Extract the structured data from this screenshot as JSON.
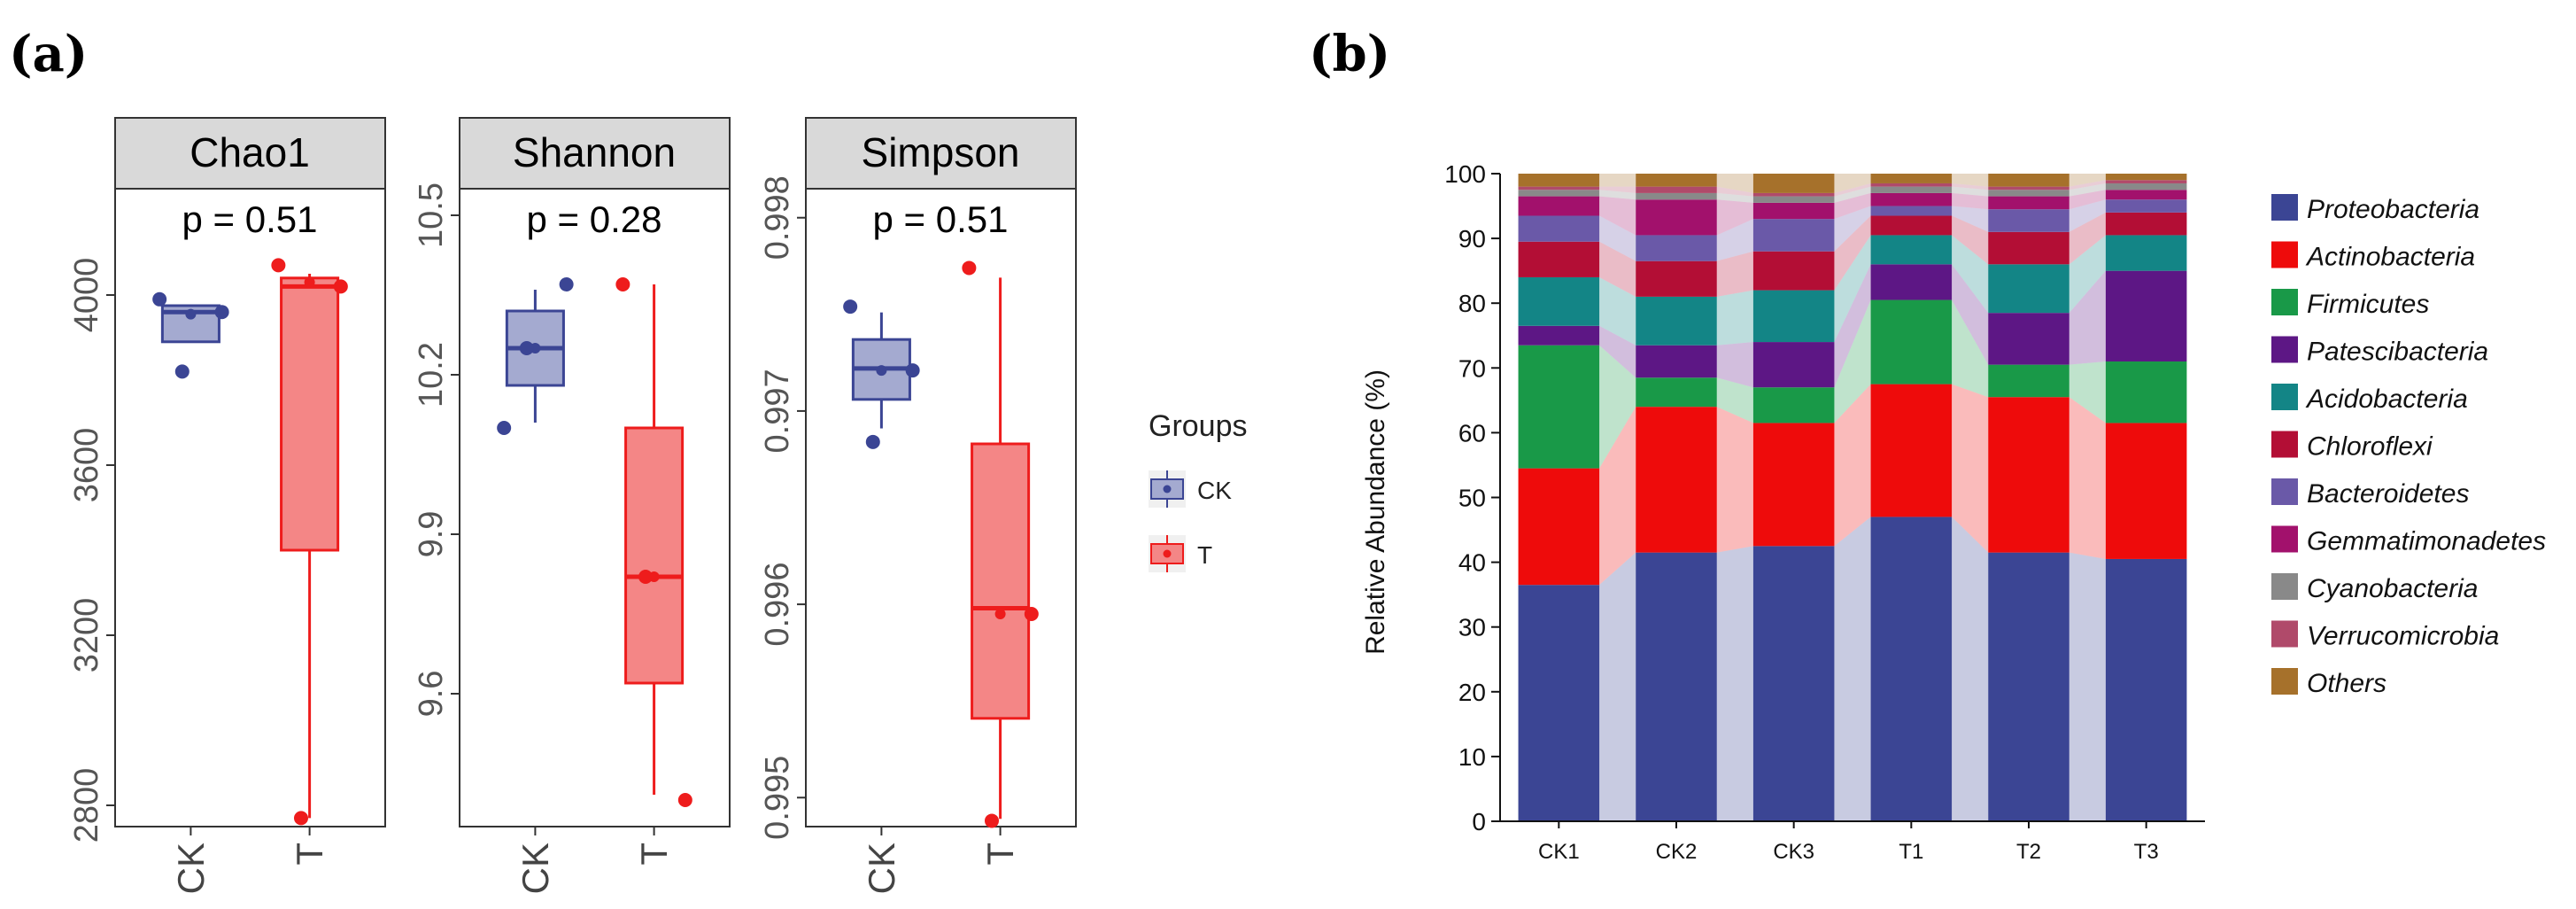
{
  "panel_labels": {
    "a": "(a)",
    "b": "(b)"
  },
  "chart_data": [
    {
      "type": "boxplot",
      "title": "Chao1",
      "p_label": "p = 0.51",
      "ylim": [
        2750,
        4250
      ],
      "yticks": [
        2800,
        3200,
        3600,
        4000
      ],
      "categories": [
        "CK",
        "T"
      ],
      "boxes": [
        {
          "group": "CK",
          "q1": 3890,
          "median": 3960,
          "q3": 3975,
          "whisker_low": 3890,
          "whisker_high": 3975,
          "mean": 3955,
          "points": [
            3990,
            3960,
            3820
          ]
        },
        {
          "group": "T",
          "q1": 3400,
          "median": 4020,
          "q3": 4040,
          "whisker_low": 2770,
          "whisker_high": 4050,
          "mean": 4030,
          "points": [
            4070,
            4020,
            2770
          ]
        }
      ]
    },
    {
      "type": "boxplot",
      "title": "Shannon",
      "p_label": "p = 0.28",
      "ylim": [
        9.35,
        10.55
      ],
      "yticks": [
        9.6,
        9.9,
        10.2,
        10.5
      ],
      "yticklabels": [
        "9.6",
        "9.9",
        "10.2",
        "10.5"
      ],
      "categories": [
        "CK",
        "T"
      ],
      "boxes": [
        {
          "group": "CK",
          "q1": 10.18,
          "median": 10.25,
          "q3": 10.32,
          "whisker_low": 10.11,
          "whisker_high": 10.36,
          "mean": 10.25,
          "points": [
            10.1,
            10.37,
            10.25
          ]
        },
        {
          "group": "T",
          "q1": 9.62,
          "median": 9.82,
          "q3": 10.1,
          "whisker_low": 9.41,
          "whisker_high": 10.37,
          "mean": 9.82,
          "points": [
            10.37,
            9.4,
            9.82
          ]
        }
      ]
    },
    {
      "type": "boxplot",
      "title": "Simpson",
      "p_label": "p = 0.51",
      "ylim": [
        0.99485,
        0.99815
      ],
      "yticks": [
        0.995,
        0.996,
        0.997,
        0.998
      ],
      "yticklabels": [
        "0.995",
        "0.996",
        "0.997",
        "0.998"
      ],
      "categories": [
        "CK",
        "T"
      ],
      "boxes": [
        {
          "group": "CK",
          "q1": 0.99706,
          "median": 0.99722,
          "q3": 0.99737,
          "whisker_low": 0.99691,
          "whisker_high": 0.99751,
          "mean": 0.99721,
          "points": [
            0.99754,
            0.99721,
            0.99684
          ]
        },
        {
          "group": "T",
          "q1": 0.99541,
          "median": 0.99598,
          "q3": 0.99683,
          "whisker_low": 0.99489,
          "whisker_high": 0.99769,
          "mean": 0.99595,
          "points": [
            0.99774,
            0.99595,
            0.99488
          ]
        }
      ]
    },
    {
      "type": "stacked_bar",
      "ylabel": "Relative Abundance (%)",
      "ylim": [
        0,
        100
      ],
      "yticks": [
        0,
        10,
        20,
        30,
        40,
        50,
        60,
        70,
        80,
        90,
        100
      ],
      "categories": [
        "CK1",
        "CK2",
        "CK3",
        "T1",
        "T2",
        "T3"
      ],
      "series": [
        {
          "name": "Proteobacteria",
          "color": "#3b4594",
          "values": [
            36.5,
            41.5,
            42.5,
            47.0,
            41.5,
            40.5
          ]
        },
        {
          "name": "Actinobacteria",
          "color": "#ee0b0b",
          "values": [
            18.0,
            22.5,
            19.0,
            20.5,
            24.0,
            21.0
          ]
        },
        {
          "name": "Firmicutes",
          "color": "#199948",
          "values": [
            19.0,
            4.5,
            5.5,
            13.0,
            5.0,
            9.5
          ]
        },
        {
          "name": "Patescibacteria",
          "color": "#5d1785",
          "values": [
            3.0,
            5.0,
            7.0,
            5.5,
            8.0,
            14.0
          ]
        },
        {
          "name": "Acidobacteria",
          "color": "#138586",
          "values": [
            7.5,
            7.5,
            8.0,
            4.5,
            7.5,
            5.5
          ]
        },
        {
          "name": "Chloroflexi",
          "color": "#b30e35",
          "values": [
            5.5,
            5.5,
            6.0,
            3.0,
            5.0,
            3.5
          ]
        },
        {
          "name": "Bacteroidetes",
          "color": "#6a59a8",
          "values": [
            4.0,
            4.0,
            5.0,
            1.5,
            3.5,
            2.0
          ]
        },
        {
          "name": "Gemmatimonadetes",
          "color": "#a2116c",
          "values": [
            3.0,
            5.5,
            2.5,
            2.0,
            2.0,
            1.5
          ]
        },
        {
          "name": "Cyanobacteria",
          "color": "#898989",
          "values": [
            1.0,
            1.0,
            1.0,
            1.0,
            1.0,
            1.0
          ]
        },
        {
          "name": "Verrucomicrobia",
          "color": "#b04a6a",
          "values": [
            0.5,
            1.0,
            0.5,
            0.5,
            0.5,
            0.5
          ]
        },
        {
          "name": "Others",
          "color": "#a6712b",
          "values": [
            2.0,
            2.0,
            3.0,
            1.5,
            2.0,
            1.0
          ]
        }
      ]
    }
  ],
  "legend_a": {
    "title": "Groups",
    "items": [
      {
        "label": "CK",
        "color": "#3b4594",
        "fill": "#a4aad0"
      },
      {
        "label": "T",
        "color": "#ee1c1c",
        "fill": "#f48686"
      }
    ]
  }
}
